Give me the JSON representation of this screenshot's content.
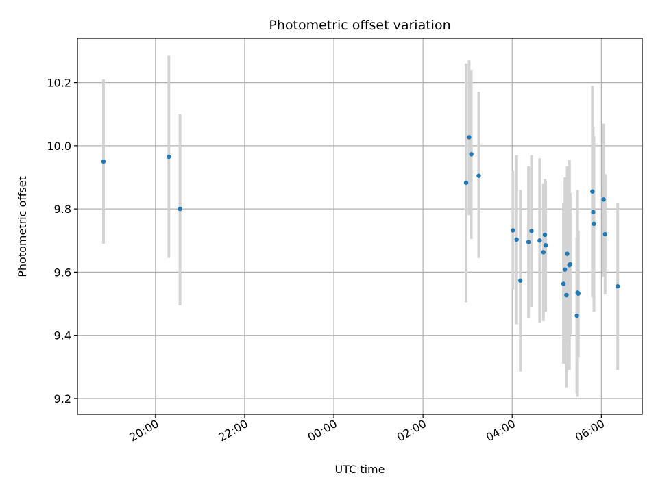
{
  "chart_data": {
    "type": "scatter",
    "title": "Photometric offset variation",
    "xlabel": "UTC time",
    "ylabel": "Photometric offset",
    "x_axis_type": "time",
    "x_ticks": [
      "20:00",
      "22:00",
      "00:00",
      "02:00",
      "04:00",
      "06:00"
    ],
    "x_tick_times": [
      "2000-01-01T20:00",
      "2000-01-01T22:00",
      "2000-01-02T00:00",
      "2000-01-02T02:00",
      "2000-01-02T04:00",
      "2000-01-02T06:00"
    ],
    "xlim": [
      "2000-01-01T18:15",
      "2000-01-02T06:55"
    ],
    "y_ticks": [
      9.2,
      9.4,
      9.6,
      9.8,
      10.0,
      10.2
    ],
    "ylim": [
      9.15,
      10.34
    ],
    "grid": true,
    "marker_color": "#1f77b4",
    "errorbar_color": "#d3d3d3",
    "points": [
      {
        "t": "2000-01-01T18:50",
        "y": 9.95,
        "lo": 9.69,
        "hi": 10.21
      },
      {
        "t": "2000-01-01T20:18",
        "y": 9.965,
        "lo": 9.645,
        "hi": 10.285
      },
      {
        "t": "2000-01-01T20:33",
        "y": 9.8,
        "lo": 9.495,
        "hi": 10.1
      },
      {
        "t": "2000-01-02T02:58",
        "y": 9.883,
        "lo": 9.505,
        "hi": 10.26
      },
      {
        "t": "2000-01-02T03:02",
        "y": 10.027,
        "lo": 9.78,
        "hi": 10.27
      },
      {
        "t": "2000-01-02T03:05",
        "y": 9.973,
        "lo": 9.705,
        "hi": 10.24
      },
      {
        "t": "2000-01-02T03:15",
        "y": 9.905,
        "lo": 9.645,
        "hi": 10.17
      },
      {
        "t": "2000-01-02T04:01",
        "y": 9.732,
        "lo": 9.545,
        "hi": 9.92
      },
      {
        "t": "2000-01-02T04:06",
        "y": 9.703,
        "lo": 9.435,
        "hi": 9.97
      },
      {
        "t": "2000-01-02T04:11",
        "y": 9.573,
        "lo": 9.285,
        "hi": 9.86
      },
      {
        "t": "2000-01-02T04:22",
        "y": 9.695,
        "lo": 9.455,
        "hi": 9.935
      },
      {
        "t": "2000-01-02T04:26",
        "y": 9.73,
        "lo": 9.49,
        "hi": 9.97
      },
      {
        "t": "2000-01-02T04:37",
        "y": 9.7,
        "lo": 9.44,
        "hi": 9.96
      },
      {
        "t": "2000-01-02T04:42",
        "y": 9.663,
        "lo": 9.445,
        "hi": 9.88
      },
      {
        "t": "2000-01-02T04:44",
        "y": 9.718,
        "lo": 9.54,
        "hi": 9.895
      },
      {
        "t": "2000-01-02T04:45",
        "y": 9.685,
        "lo": 9.475,
        "hi": 9.89
      },
      {
        "t": "2000-01-02T05:09",
        "y": 9.563,
        "lo": 9.31,
        "hi": 9.82
      },
      {
        "t": "2000-01-02T05:11",
        "y": 9.608,
        "lo": 9.31,
        "hi": 9.9
      },
      {
        "t": "2000-01-02T05:13",
        "y": 9.527,
        "lo": 9.235,
        "hi": 9.82
      },
      {
        "t": "2000-01-02T05:14",
        "y": 9.658,
        "lo": 9.38,
        "hi": 9.935
      },
      {
        "t": "2000-01-02T05:17",
        "y": 9.622,
        "lo": 9.29,
        "hi": 9.955
      },
      {
        "t": "2000-01-02T05:18",
        "y": 9.625,
        "lo": 9.4,
        "hi": 9.85
      },
      {
        "t": "2000-01-02T05:27",
        "y": 9.462,
        "lo": 9.215,
        "hi": 9.71
      },
      {
        "t": "2000-01-02T05:28",
        "y": 9.535,
        "lo": 9.205,
        "hi": 9.86
      },
      {
        "t": "2000-01-02T05:29",
        "y": 9.532,
        "lo": 9.33,
        "hi": 9.73
      },
      {
        "t": "2000-01-02T05:48",
        "y": 9.855,
        "lo": 9.52,
        "hi": 10.19
      },
      {
        "t": "2000-01-02T05:49",
        "y": 9.79,
        "lo": 9.54,
        "hi": 10.06
      },
      {
        "t": "2000-01-02T05:50",
        "y": 9.753,
        "lo": 9.475,
        "hi": 10.03
      },
      {
        "t": "2000-01-02T06:03",
        "y": 9.83,
        "lo": 9.585,
        "hi": 10.07
      },
      {
        "t": "2000-01-02T06:05",
        "y": 9.72,
        "lo": 9.53,
        "hi": 9.91
      },
      {
        "t": "2000-01-02T06:22",
        "y": 9.555,
        "lo": 9.29,
        "hi": 9.82
      }
    ]
  }
}
